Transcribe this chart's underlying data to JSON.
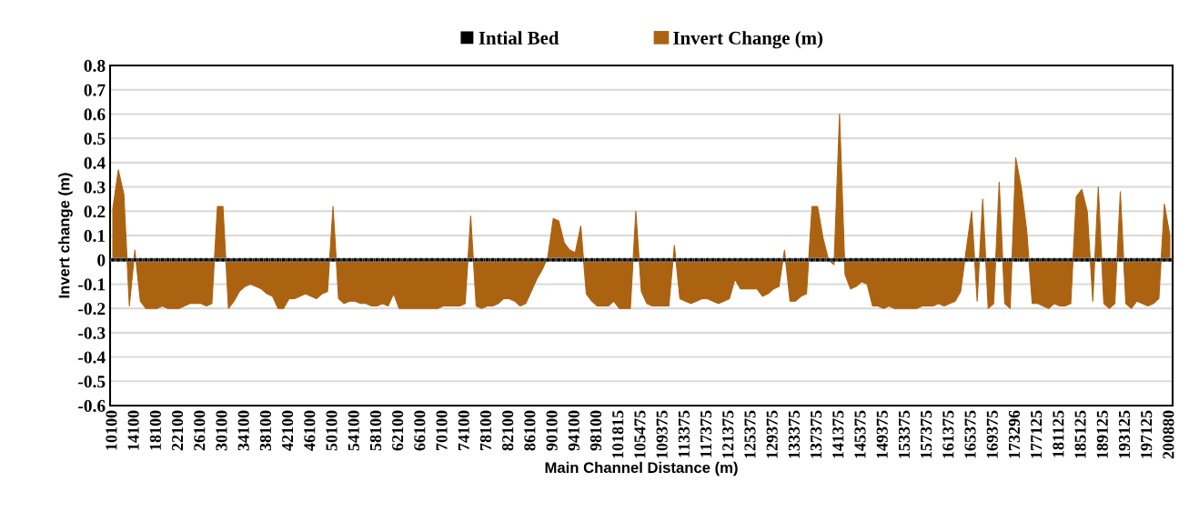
{
  "chart_data": {
    "type": "area",
    "xlabel": "Main Channel Distance (m)",
    "ylabel": "Invert change (m)",
    "categories": [
      "10100",
      null,
      null,
      null,
      "14100",
      null,
      null,
      null,
      "18100",
      null,
      null,
      null,
      "22100",
      null,
      null,
      null,
      "26100",
      null,
      null,
      null,
      "30100",
      null,
      null,
      null,
      "34100",
      null,
      null,
      null,
      "38100",
      null,
      null,
      null,
      "42100",
      null,
      null,
      null,
      "46100",
      null,
      null,
      null,
      "50100",
      null,
      null,
      null,
      "54100",
      null,
      null,
      null,
      "58100",
      null,
      null,
      null,
      "62100",
      null,
      null,
      null,
      "66100",
      null,
      null,
      null,
      "70100",
      null,
      null,
      null,
      "74100",
      null,
      null,
      null,
      "78100",
      null,
      null,
      null,
      "82100",
      null,
      null,
      null,
      "86100",
      null,
      null,
      null,
      "90100",
      null,
      null,
      null,
      "94100",
      null,
      null,
      null,
      "98100",
      null,
      null,
      null,
      "101815",
      null,
      null,
      null,
      "105475",
      null,
      null,
      null,
      "109375",
      null,
      null,
      null,
      "113375",
      null,
      null,
      null,
      "117375",
      null,
      null,
      null,
      "121375",
      null,
      null,
      null,
      "125375",
      null,
      null,
      null,
      "129375",
      null,
      null,
      null,
      "133375",
      null,
      null,
      null,
      "137375",
      null,
      null,
      null,
      "141375",
      null,
      null,
      null,
      "145375",
      null,
      null,
      null,
      "149375",
      null,
      null,
      null,
      "153375",
      null,
      null,
      null,
      "157375",
      null,
      null,
      null,
      "161375",
      null,
      null,
      null,
      "165375",
      null,
      null,
      null,
      "169375",
      null,
      null,
      null,
      "173296",
      null,
      null,
      null,
      "177125",
      null,
      null,
      null,
      "181125",
      null,
      null,
      null,
      "185125",
      null,
      null,
      null,
      "189125",
      null,
      null,
      null,
      "193125",
      null,
      null,
      null,
      "197125",
      null,
      null,
      null,
      "200880"
    ],
    "series": [
      {
        "name": "Intial Bed",
        "type": "line",
        "marker": "square",
        "color": "#000000",
        "values": [
          0,
          0,
          0,
          0,
          0,
          0,
          0,
          0,
          0,
          0,
          0,
          0,
          0,
          0,
          0,
          0,
          0,
          0,
          0,
          0,
          0,
          0,
          0,
          0,
          0,
          0,
          0,
          0,
          0,
          0,
          0,
          0,
          0,
          0,
          0,
          0,
          0,
          0,
          0,
          0,
          0,
          0,
          0,
          0,
          0,
          0,
          0,
          0,
          0,
          0,
          0,
          0,
          0,
          0,
          0,
          0,
          0,
          0,
          0,
          0,
          0,
          0,
          0,
          0,
          0,
          0,
          0,
          0,
          0,
          0,
          0,
          0,
          0,
          0,
          0,
          0,
          0,
          0,
          0,
          0,
          0,
          0,
          0,
          0,
          0,
          0,
          0,
          0,
          0,
          0,
          0,
          0,
          0,
          0,
          0,
          0,
          0,
          0,
          0,
          0,
          0,
          0,
          0,
          0,
          0,
          0,
          0,
          0,
          0,
          0,
          0,
          0,
          0,
          0,
          0,
          0,
          0,
          0,
          0,
          0,
          0,
          0,
          0,
          0,
          0,
          0,
          0,
          0,
          0,
          0,
          0,
          0,
          0,
          0,
          0,
          0,
          0,
          0,
          0,
          0,
          0,
          0,
          0,
          0,
          0,
          0,
          0,
          0,
          0,
          0,
          0,
          0,
          0,
          0,
          0,
          0,
          0,
          0,
          0,
          0,
          0,
          0,
          0,
          0,
          0,
          0,
          0,
          0,
          0,
          0,
          0,
          0,
          0,
          0,
          0,
          0,
          0,
          0,
          0,
          0,
          0,
          0,
          0,
          0,
          0,
          0,
          0,
          0,
          0,
          0,
          0,
          0,
          0
        ]
      },
      {
        "name": "Invert Change (m)",
        "color": "#ab6312",
        "values": [
          0.21,
          0.37,
          0.27,
          -0.19,
          0.04,
          -0.17,
          -0.2,
          -0.2,
          -0.2,
          -0.19,
          -0.2,
          -0.2,
          -0.2,
          -0.19,
          -0.18,
          -0.18,
          -0.18,
          -0.19,
          -0.18,
          0.22,
          0.22,
          -0.2,
          -0.17,
          -0.13,
          -0.11,
          -0.1,
          -0.11,
          -0.12,
          -0.14,
          -0.15,
          -0.2,
          -0.2,
          -0.16,
          -0.16,
          -0.15,
          -0.14,
          -0.15,
          -0.16,
          -0.14,
          -0.13,
          0.22,
          -0.16,
          -0.18,
          -0.17,
          -0.17,
          -0.18,
          -0.18,
          -0.19,
          -0.19,
          -0.18,
          -0.19,
          -0.14,
          -0.2,
          -0.2,
          -0.2,
          -0.2,
          -0.2,
          -0.2,
          -0.2,
          -0.2,
          -0.19,
          -0.19,
          -0.19,
          -0.19,
          -0.18,
          0.18,
          -0.19,
          -0.2,
          -0.19,
          -0.19,
          -0.18,
          -0.16,
          -0.16,
          -0.17,
          -0.19,
          -0.18,
          -0.13,
          -0.08,
          -0.04,
          0.01,
          0.17,
          0.16,
          0.07,
          0.04,
          0.03,
          0.14,
          -0.14,
          -0.17,
          -0.19,
          -0.19,
          -0.19,
          -0.17,
          -0.2,
          -0.2,
          -0.2,
          0.2,
          -0.13,
          -0.18,
          -0.19,
          -0.19,
          -0.19,
          -0.19,
          0.06,
          -0.16,
          -0.17,
          -0.18,
          -0.17,
          -0.16,
          -0.16,
          -0.17,
          -0.18,
          -0.17,
          -0.16,
          -0.08,
          -0.12,
          -0.12,
          -0.12,
          -0.12,
          -0.15,
          -0.14,
          -0.12,
          -0.11,
          0.04,
          -0.17,
          -0.17,
          -0.15,
          -0.14,
          0.22,
          0.22,
          0.09,
          0.0,
          -0.02,
          0.6,
          -0.06,
          -0.12,
          -0.11,
          -0.09,
          -0.1,
          -0.19,
          -0.19,
          -0.2,
          -0.19,
          -0.2,
          -0.2,
          -0.2,
          -0.2,
          -0.2,
          -0.19,
          -0.19,
          -0.19,
          -0.18,
          -0.19,
          -0.18,
          -0.17,
          -0.13,
          0.04,
          0.2,
          -0.17,
          0.25,
          -0.2,
          -0.18,
          0.32,
          -0.18,
          -0.2,
          0.42,
          0.3,
          0.12,
          -0.18,
          -0.18,
          -0.19,
          -0.2,
          -0.18,
          -0.19,
          -0.19,
          -0.18,
          0.26,
          0.29,
          0.2,
          -0.17,
          0.3,
          -0.18,
          -0.2,
          -0.18,
          0.28,
          -0.18,
          -0.2,
          -0.17,
          -0.18,
          -0.19,
          -0.18,
          -0.16,
          0.23,
          0.1
        ]
      }
    ],
    "ylim": [
      -0.6,
      0.8
    ],
    "yticks": [
      -0.6,
      -0.5,
      -0.4,
      -0.3,
      -0.2,
      -0.1,
      0,
      0.1,
      0.2,
      0.3,
      0.4,
      0.5,
      0.6,
      0.7,
      0.8
    ],
    "grid": "y",
    "legend": "top"
  }
}
